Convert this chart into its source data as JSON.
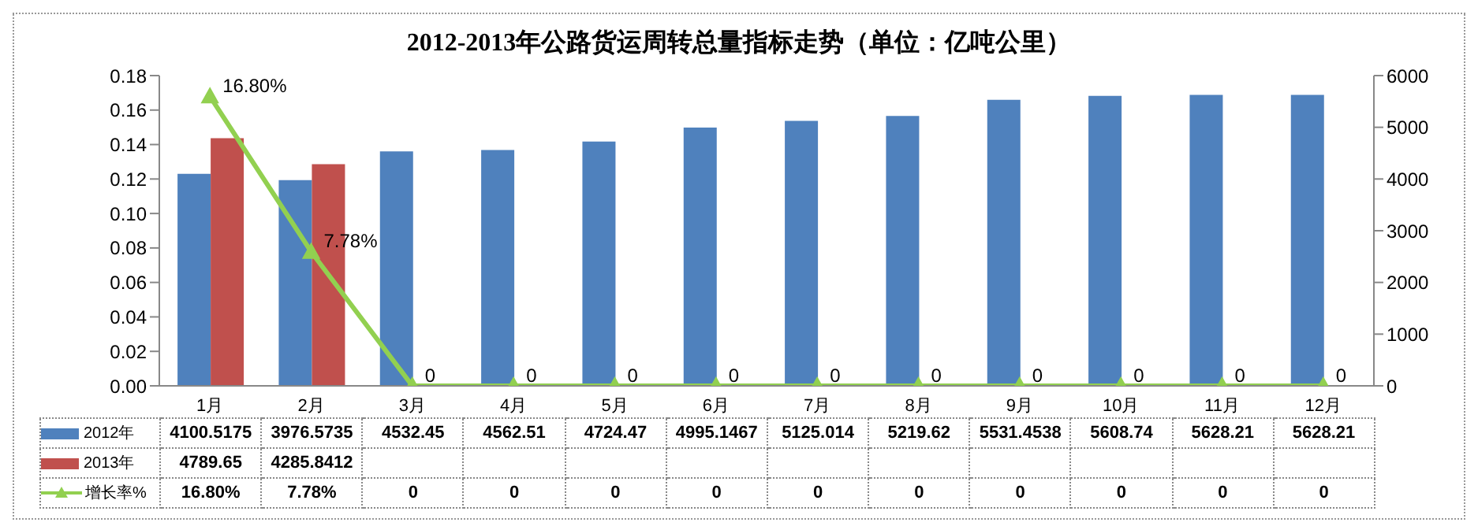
{
  "chart_data": {
    "type": "bar",
    "title": "2012-2013年公路货运周转总量指标走势（单位：亿吨公里）",
    "categories": [
      "1月",
      "2月",
      "3月",
      "4月",
      "5月",
      "6月",
      "7月",
      "8月",
      "9月",
      "10月",
      "11月",
      "12月"
    ],
    "series": [
      {
        "name": "2012年",
        "axis": "y2",
        "color": "#4f81bd",
        "values": [
          4100.5175,
          3976.5735,
          4532.45,
          4562.51,
          4724.47,
          4995.1467,
          5125.014,
          5219.62,
          5531.4538,
          5608.74,
          5628.21,
          5628.21
        ],
        "value_labels": [
          "4100.5175",
          "3976.5735",
          "4532.45",
          "4562.51",
          "4724.47",
          "4995.1467",
          "5125.014",
          "5219.62",
          "5531.4538",
          "5608.74",
          "5628.21",
          "5628.21"
        ]
      },
      {
        "name": "2013年",
        "axis": "y2",
        "color": "#c0504d",
        "values": [
          4789.65,
          4285.8412,
          null,
          null,
          null,
          null,
          null,
          null,
          null,
          null,
          null,
          null
        ],
        "value_labels": [
          "4789.65",
          "4285.8412",
          null,
          null,
          null,
          null,
          null,
          null,
          null,
          null,
          null,
          null
        ]
      },
      {
        "name": "增长率%",
        "type": "line",
        "axis": "y",
        "color": "#92d050",
        "values": [
          0.168,
          0.0778,
          0,
          0,
          0,
          0,
          0,
          0,
          0,
          0,
          0,
          0
        ],
        "value_labels": [
          "16.80%",
          "7.78%",
          "0",
          "0",
          "0",
          "0",
          "0",
          "0",
          "0",
          "0",
          "0",
          "0"
        ]
      }
    ],
    "ylim": [
      0,
      0.18
    ],
    "yticks": [
      {
        "value": 0,
        "label": "0.00"
      },
      {
        "value": 0.02,
        "label": "0.02"
      },
      {
        "value": 0.04,
        "label": "0.04"
      },
      {
        "value": 0.06,
        "label": "0.06"
      },
      {
        "value": 0.08,
        "label": "0.08"
      },
      {
        "value": 0.1,
        "label": "0.10"
      },
      {
        "value": 0.12,
        "label": "0.12"
      },
      {
        "value": 0.14,
        "label": "0.14"
      },
      {
        "value": 0.16,
        "label": "0.16"
      },
      {
        "value": 0.18,
        "label": "0.18"
      }
    ],
    "y2lim": [
      0,
      6000
    ],
    "y2ticks": [
      0,
      1000,
      2000,
      3000,
      4000,
      5000,
      6000
    ],
    "grid": false,
    "legend": "bottom",
    "marker": "triangle",
    "line_style": "solid"
  }
}
